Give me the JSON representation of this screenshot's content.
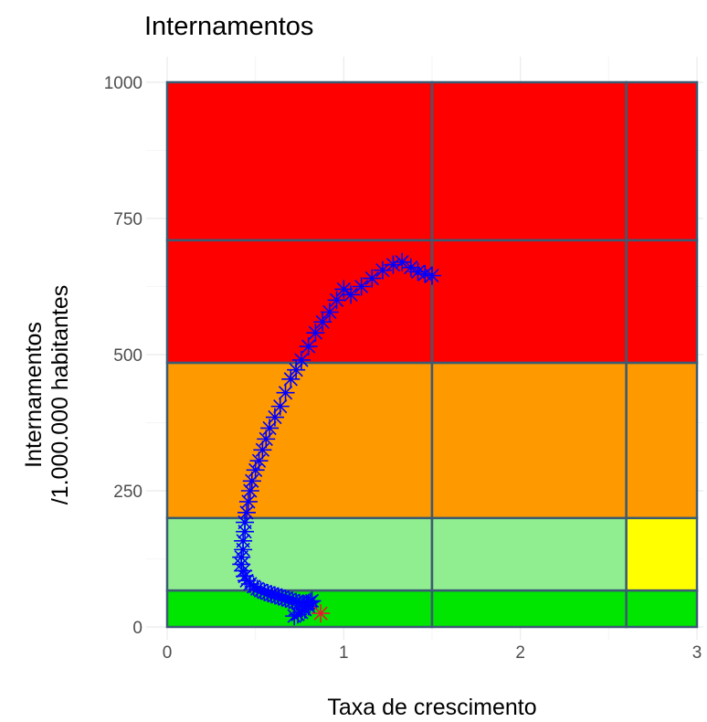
{
  "chart_data": {
    "type": "scatter",
    "title": "Internamentos",
    "xlabel": "Taxa de crescimento",
    "ylabel_lines": [
      "Internamentos",
      "/1.000.000 habitantes"
    ],
    "xlim": [
      0,
      3
    ],
    "ylim": [
      0,
      1000
    ],
    "x_ticks": [
      0,
      1,
      2,
      3
    ],
    "x_tick_labels": [
      "0",
      "1",
      "2",
      "3"
    ],
    "y_ticks": [
      0,
      250,
      500,
      750,
      1000
    ],
    "y_tick_labels": [
      "0",
      "250",
      "500",
      "750",
      "1000"
    ],
    "grid": true,
    "zones": [
      {
        "x": [
          0,
          1.5
        ],
        "y": [
          0,
          67
        ],
        "fill": "#00e600"
      },
      {
        "x": [
          1.5,
          2.6
        ],
        "y": [
          0,
          67
        ],
        "fill": "#00e600"
      },
      {
        "x": [
          2.6,
          3
        ],
        "y": [
          0,
          67
        ],
        "fill": "#00e600"
      },
      {
        "x": [
          0,
          1.5
        ],
        "y": [
          67,
          200
        ],
        "fill": "#90ee90"
      },
      {
        "x": [
          1.5,
          2.6
        ],
        "y": [
          67,
          200
        ],
        "fill": "#90ee90"
      },
      {
        "x": [
          2.6,
          3
        ],
        "y": [
          67,
          200
        ],
        "fill": "#ffff00"
      },
      {
        "x": [
          0,
          1.5
        ],
        "y": [
          200,
          485
        ],
        "fill": "#ff9900"
      },
      {
        "x": [
          1.5,
          2.6
        ],
        "y": [
          200,
          485
        ],
        "fill": "#ff9900"
      },
      {
        "x": [
          2.6,
          3
        ],
        "y": [
          200,
          485
        ],
        "fill": "#ff9900"
      },
      {
        "x": [
          0,
          1.5
        ],
        "y": [
          485,
          710
        ],
        "fill": "#ff0000"
      },
      {
        "x": [
          1.5,
          2.6
        ],
        "y": [
          485,
          710
        ],
        "fill": "#ff0000"
      },
      {
        "x": [
          2.6,
          3
        ],
        "y": [
          485,
          710
        ],
        "fill": "#ff0000"
      },
      {
        "x": [
          0,
          1.5
        ],
        "y": [
          710,
          1000
        ],
        "fill": "#ff0000"
      },
      {
        "x": [
          1.5,
          2.6
        ],
        "y": [
          710,
          1000
        ],
        "fill": "#ff0000"
      },
      {
        "x": [
          2.6,
          3
        ],
        "y": [
          710,
          1000
        ],
        "fill": "#ff0000"
      }
    ],
    "marker": "asterisk",
    "series": [
      {
        "color": "#0000ff",
        "x": [
          1.5,
          1.46,
          1.42,
          1.38,
          1.33,
          1.28,
          1.22,
          1.16,
          1.1,
          1.04,
          1.0,
          0.96,
          0.92,
          0.88,
          0.84,
          0.8,
          0.76,
          0.73,
          0.7,
          0.67,
          0.64,
          0.61,
          0.58,
          0.56,
          0.54,
          0.52,
          0.5,
          0.48,
          0.47,
          0.46,
          0.45,
          0.44,
          0.44,
          0.43,
          0.43,
          0.42,
          0.42,
          0.43,
          0.44,
          0.45,
          0.47,
          0.49,
          0.51,
          0.53,
          0.55,
          0.57,
          0.59,
          0.61,
          0.63,
          0.65,
          0.67,
          0.69,
          0.71,
          0.73,
          0.75,
          0.77,
          0.79,
          0.8,
          0.81,
          0.82,
          0.8,
          0.78,
          0.76,
          0.74,
          0.72
        ],
        "y": [
          645,
          648,
          652,
          660,
          670,
          665,
          655,
          640,
          625,
          610,
          620,
          600,
          578,
          560,
          540,
          515,
          490,
          472,
          455,
          430,
          405,
          385,
          365,
          345,
          325,
          305,
          288,
          268,
          250,
          230,
          210,
          192,
          175,
          158,
          142,
          128,
          115,
          103,
          93,
          85,
          79,
          74,
          70,
          67,
          64,
          62,
          60,
          58,
          56,
          54,
          52,
          50,
          48,
          46,
          44,
          43,
          42,
          44,
          46,
          48,
          38,
          32,
          27,
          23,
          20
        ]
      },
      {
        "color": "#e8192c",
        "x": [
          0.87
        ],
        "y": [
          25
        ]
      }
    ]
  }
}
